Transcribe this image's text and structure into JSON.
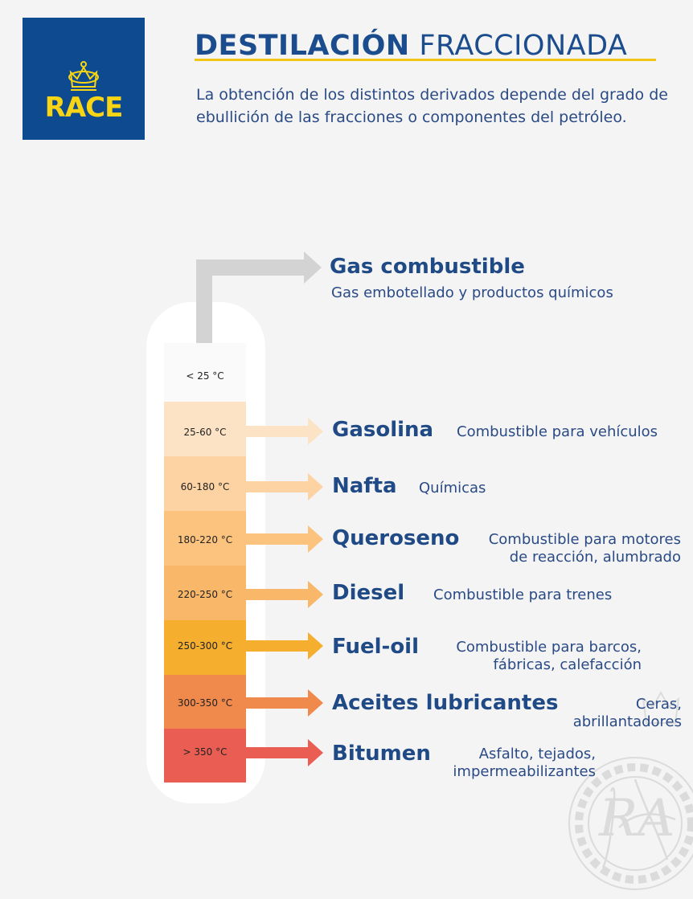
{
  "header": {
    "logo_text": "RACE",
    "title_bold": "DESTILACIÓN",
    "title_light": "FRACCIONADA",
    "intro": "La obtención de los distintos derivados depende del grado de ebullición de las fracciones o componentes del petróleo."
  },
  "fractions": [
    {
      "temp": "< 25 °C",
      "name": "Gas combustible",
      "desc": "Gas embotellado y productos químicos",
      "color": "#fafafa"
    },
    {
      "temp": "25-60 °C",
      "name": "Gasolina",
      "desc": "Combustible para vehículos",
      "color": "#fde3c5"
    },
    {
      "temp": "60-180 °C",
      "name": "Nafta",
      "desc": "Químicas",
      "color": "#fdd3a4"
    },
    {
      "temp": "180-220 °C",
      "name": "Queroseno",
      "desc": "Combustible para motores de reacción, alumbrado",
      "color": "#fcc37f"
    },
    {
      "temp": "220-250 °C",
      "name": "Diesel",
      "desc": "Combustible para trenes",
      "color": "#f9b769"
    },
    {
      "temp": "250-300 °C",
      "name": "Fuel-oil",
      "desc": "Combustible para barcos, fábricas, calefacción",
      "color": "#f6ae2f"
    },
    {
      "temp": "300-350 °C",
      "name": "Aceites lubricantes",
      "desc": "Ceras, abrillantadores",
      "color": "#ef8a4c"
    },
    {
      "temp": "> 350 °C",
      "name": "Bitumen",
      "desc": "Asfalto, tejados, impermeabilizantes",
      "color": "#e95d53"
    }
  ],
  "colors": {
    "brand_blue": "#0e4a90",
    "brand_yellow": "#f7d414",
    "text_blue": "#1f4a86",
    "gas_pipe": "#d3d3d3"
  },
  "icons": {
    "crown": "crown-icon",
    "seal": "rac-seal-watermark"
  }
}
